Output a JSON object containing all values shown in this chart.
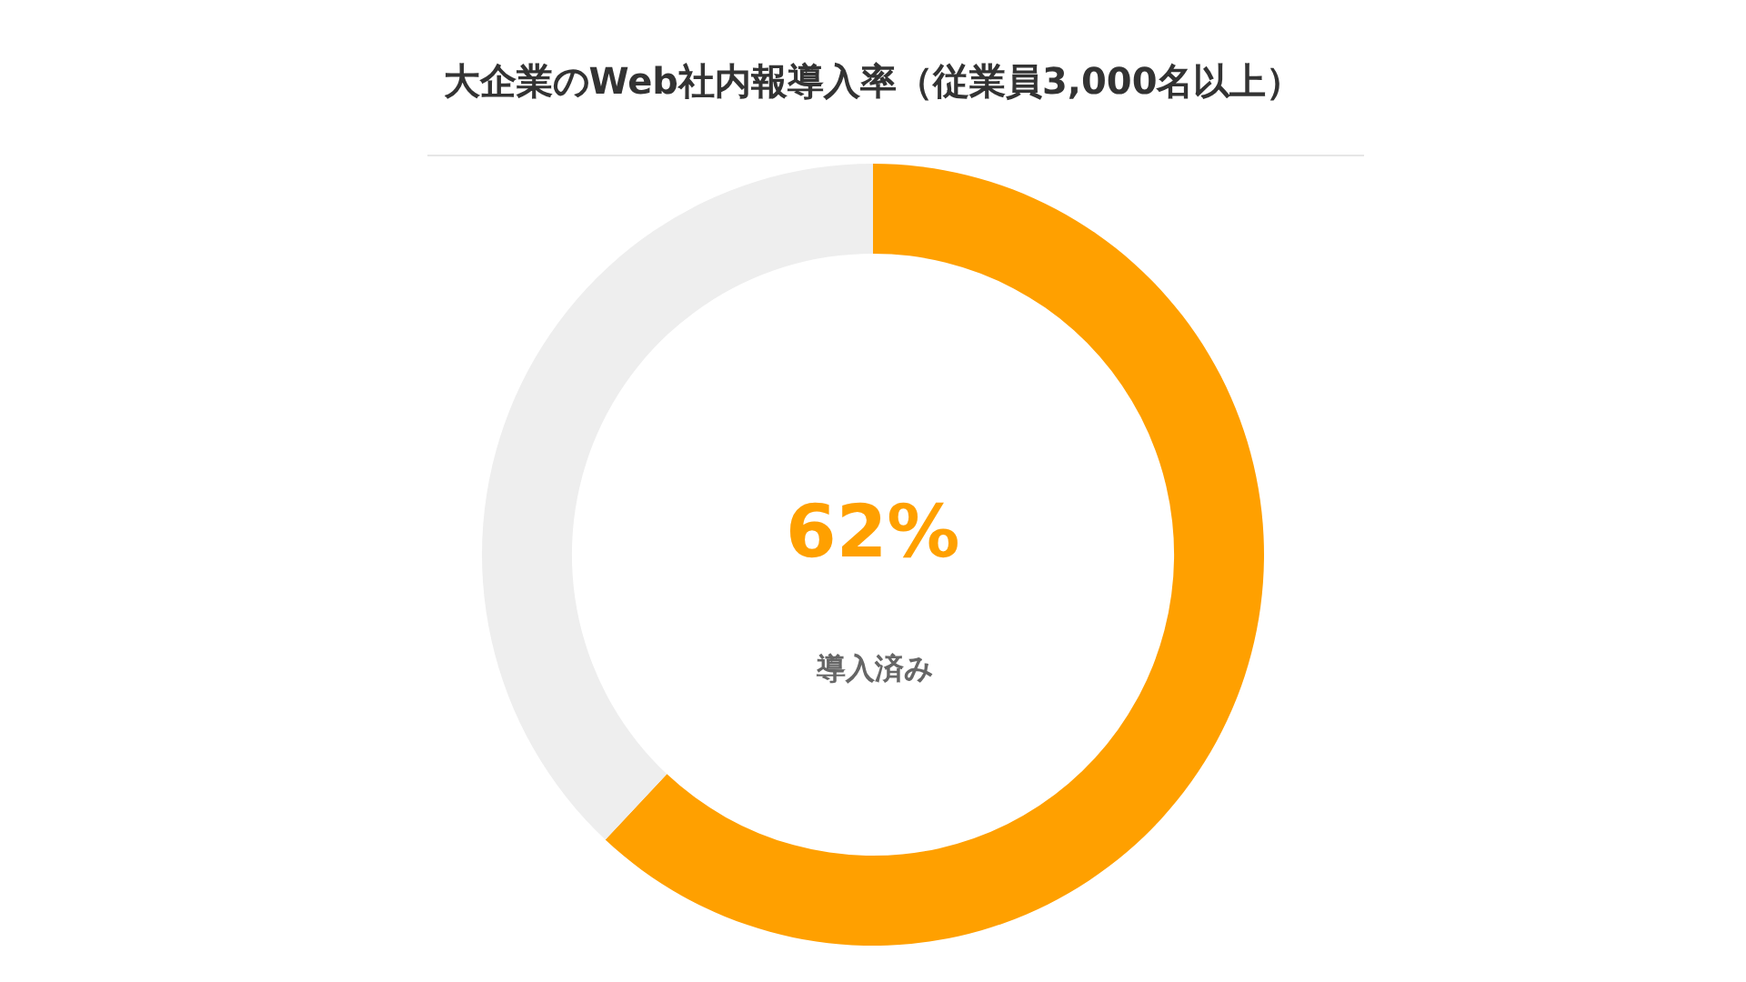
{
  "chart_data": {
    "type": "donut",
    "title": "大企業のWeb社内報導入率（従業員3,000名以上）",
    "categories": [
      "導入済み",
      null
    ],
    "values": [
      62,
      38
    ],
    "colors": [
      "#ffa000",
      "#eeeeee"
    ],
    "value_labels": [
      "62%",
      null
    ],
    "legend": false
  }
}
